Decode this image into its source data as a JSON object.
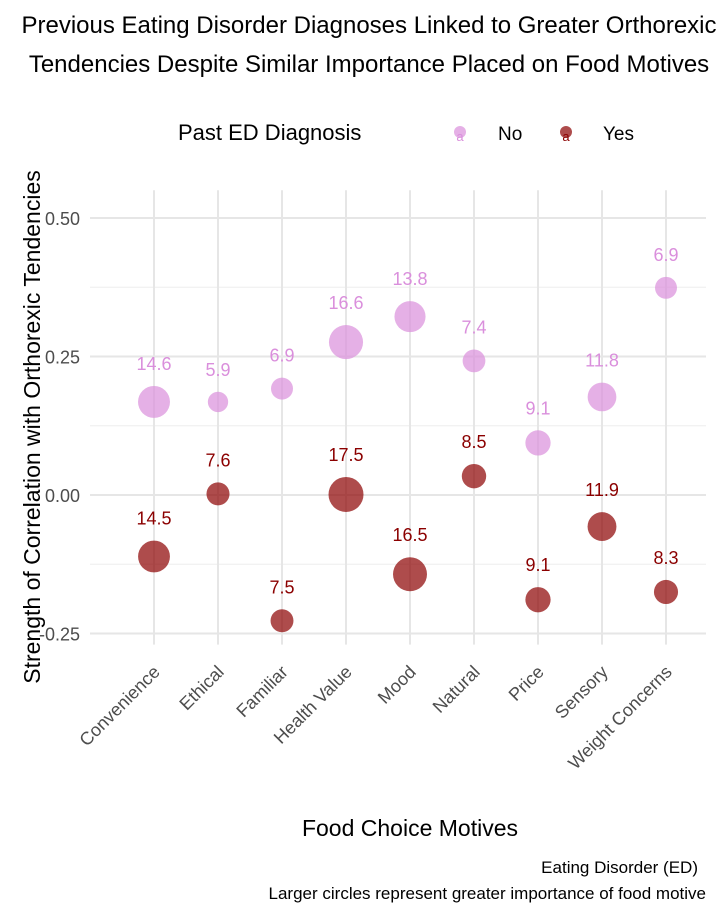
{
  "chart_data": {
    "type": "scatter",
    "title_line1": "Previous Eating Disorder Diagnoses Linked to Greater Orthorexic",
    "title_line2": "Tendencies Despite Similar Importance Placed on Food Motives",
    "xlabel": "Food Choice Motives",
    "ylabel": "Strength of Correlation with Orthorexic Tendencies",
    "caption_line1": "Eating Disorder (ED)",
    "caption_line2": "Larger circles represent greater importance of food motive",
    "legend": {
      "title": "Past ED Diagnosis",
      "placement": "top",
      "key_glyph": "a"
    },
    "categories": [
      "Convenience",
      "Ethical",
      "Familiar",
      "Health Value",
      "Mood",
      "Natural",
      "Price",
      "Sensory",
      "Weight Concerns"
    ],
    "ylim": [
      -0.27,
      0.55
    ],
    "y_ticks": [
      -0.25,
      0.0,
      0.25,
      0.5
    ],
    "y_tick_labels": [
      "-0.25",
      "0.00",
      "0.25",
      "0.50"
    ],
    "grid": true,
    "series": [
      {
        "name": "No",
        "color": "#DA8FDC",
        "y": [
          0.168,
          0.168,
          0.192,
          0.276,
          0.322,
          0.242,
          0.094,
          0.177,
          0.374
        ],
        "size": [
          14.6,
          5.9,
          6.9,
          16.6,
          13.8,
          7.4,
          9.1,
          11.8,
          6.9
        ],
        "labels": [
          "14.6",
          "5.9",
          "6.9",
          "16.6",
          "13.8",
          "7.4",
          "9.1",
          "11.8",
          "6.9"
        ]
      },
      {
        "name": "Yes",
        "color": "#8B0000",
        "y": [
          -0.111,
          0.002,
          -0.227,
          0.001,
          -0.143,
          0.034,
          -0.189,
          -0.057,
          -0.175
        ],
        "size": [
          14.5,
          7.6,
          7.5,
          17.5,
          16.5,
          8.5,
          9.1,
          11.9,
          8.3
        ],
        "labels": [
          "14.5",
          "7.6",
          "7.5",
          "17.5",
          "16.5",
          "8.5",
          "9.1",
          "11.9",
          "8.3"
        ]
      }
    ]
  }
}
